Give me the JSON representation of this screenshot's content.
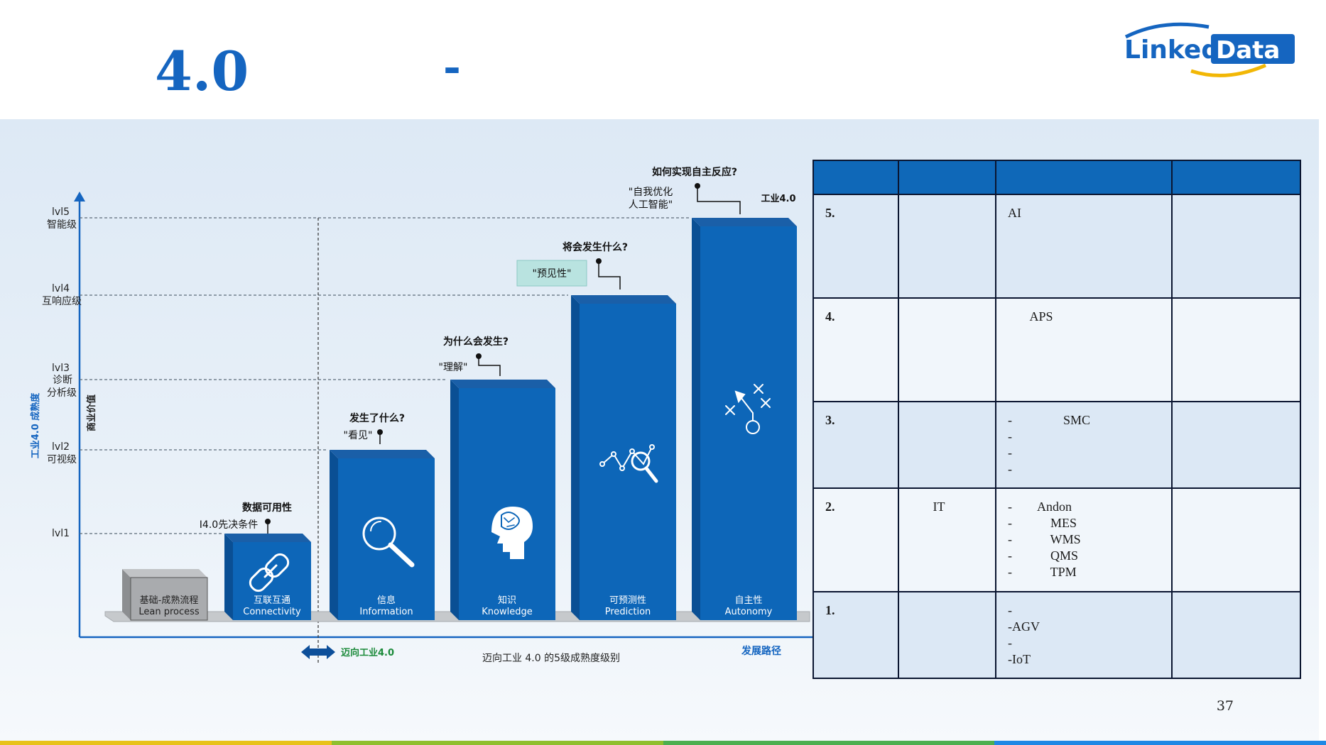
{
  "header": {
    "title_main": "4.0",
    "title_dash": "-"
  },
  "logo": {
    "text_left": "Linked",
    "text_right": "Data"
  },
  "diagram": {
    "y_axis_maturity": "工业4.0 成熟度",
    "y_axis_value": "商业价值",
    "levels": [
      {
        "code": "lvl5",
        "name": "智能级"
      },
      {
        "code": "lvl4",
        "name": "互响应级"
      },
      {
        "code": "lvl3",
        "name": "诊断",
        "name2": "分析级"
      },
      {
        "code": "lvl2",
        "name": "可视级"
      },
      {
        "code": "lvl1",
        "name": ""
      }
    ],
    "bars": [
      {
        "cn": "基础-成熟流程",
        "en": "Lean process",
        "icon": "box-icon"
      },
      {
        "cn": "互联互通",
        "en": "Connectivity",
        "icon": "link-icon"
      },
      {
        "cn": "信息",
        "en": "Information",
        "icon": "magnifier-icon"
      },
      {
        "cn": "知识",
        "en": "Knowledge",
        "icon": "brain-head-icon"
      },
      {
        "cn": "可预测性",
        "en": "Prediction",
        "icon": "trend-search-icon"
      },
      {
        "cn": "自主性",
        "en": "Autonomy",
        "icon": "tactics-icon"
      }
    ],
    "annotations": [
      {
        "question": "数据可用性",
        "note": "I4.0先决条件"
      },
      {
        "question": "发生了什么?",
        "note": "\"看见\""
      },
      {
        "question": "为什么会发生?",
        "note": "\"理解\""
      },
      {
        "question": "将会发生什么?",
        "note": "\"预见性\""
      },
      {
        "question": "如何实现自主反应?",
        "note": "\"自我优化",
        "note2": "人工智能\"",
        "tag": "工业4.0"
      }
    ],
    "x_axis_label": "发展路径",
    "toward_label": "迈向工业4.0",
    "caption": "迈向工业 4.0 的5级成熟度级别"
  },
  "table": {
    "headers": [
      "",
      "",
      "",
      ""
    ],
    "rows": [
      {
        "level": "5.",
        "it": "",
        "items": [
          "AI"
        ],
        "notes": ""
      },
      {
        "level": "4.",
        "it": "",
        "items": [
          "       APS"
        ],
        "notes": ""
      },
      {
        "level": "3.",
        "it": "",
        "items": [
          "-                SMC",
          "-",
          "-",
          "-"
        ],
        "notes": ""
      },
      {
        "level": "2.",
        "it": "       IT",
        "items": [
          "-        Andon",
          "-            MES",
          "-            WMS",
          "-            QMS",
          "-            TPM"
        ],
        "notes": ""
      },
      {
        "level": "1.",
        "it": "",
        "items": [
          "-",
          "-AGV",
          "-",
          "-IoT"
        ],
        "notes": ""
      }
    ]
  },
  "page_number": "37",
  "colors": {
    "accent": "#1565c0",
    "bar_front": "#0d66b8",
    "bar_side": "#0a4f94",
    "bar_top": "#1a5fa8",
    "table_header": "#0f68b8",
    "stripe": [
      "#e8c21a",
      "#8fbf2e",
      "#4caf50",
      "#1e88e5"
    ]
  }
}
